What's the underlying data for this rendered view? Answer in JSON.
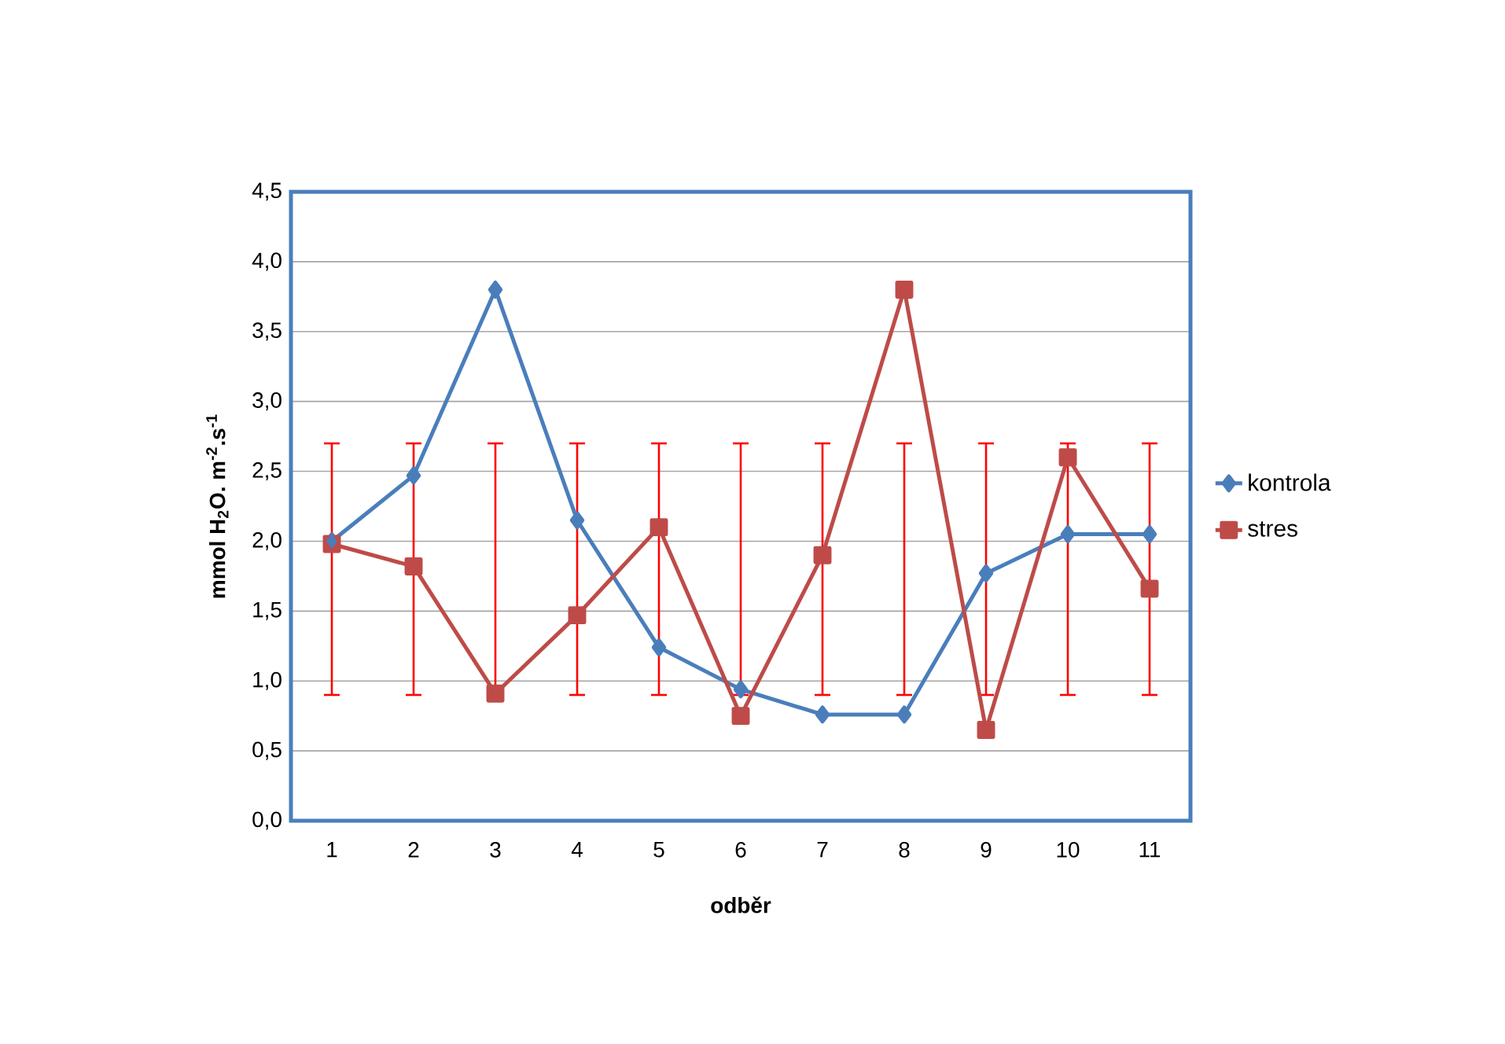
{
  "chart_data": {
    "type": "line",
    "xlabel": "odběr",
    "ylabel": "mmol H$_{2}$O. m$^{-2}$.s$^{-1}$",
    "categories": [
      "1",
      "2",
      "3",
      "4",
      "5",
      "6",
      "7",
      "8",
      "9",
      "10",
      "11"
    ],
    "series": [
      {
        "name": "kontrola",
        "color": "#4a7ebb",
        "marker": "diamond",
        "values": [
          2.0,
          2.47,
          3.8,
          2.15,
          1.24,
          0.94,
          0.76,
          0.76,
          1.77,
          2.05,
          2.05
        ]
      },
      {
        "name": "stres",
        "color": "#be4b48",
        "marker": "square",
        "values": [
          1.98,
          1.82,
          0.91,
          1.47,
          2.1,
          0.75,
          1.9,
          3.8,
          0.65,
          2.6,
          1.66
        ],
        "errors": [
          [
            0.9,
            2.7
          ],
          [
            0.9,
            2.7
          ],
          [
            0.9,
            2.7
          ],
          [
            0.9,
            2.7
          ],
          [
            0.9,
            2.7
          ],
          [
            0.9,
            2.7
          ],
          [
            0.9,
            2.7
          ],
          [
            0.9,
            2.7
          ],
          [
            0.9,
            2.7
          ],
          [
            0.9,
            2.7
          ],
          [
            0.9,
            2.7
          ]
        ]
      }
    ],
    "ylim": [
      0,
      4.5
    ],
    "yticks": [
      {
        "value": 0,
        "label": "0,0"
      },
      {
        "value": 0.5,
        "label": "0,5"
      },
      {
        "value": 1,
        "label": "1,0"
      },
      {
        "value": 1.5,
        "label": "1,5"
      },
      {
        "value": 2,
        "label": "2,0"
      },
      {
        "value": 2.5,
        "label": "2,5"
      },
      {
        "value": 3,
        "label": "3,0"
      },
      {
        "value": 3.5,
        "label": "3,5"
      },
      {
        "value": 4,
        "label": "4,0"
      },
      {
        "value": 4.5,
        "label": "4,5"
      }
    ],
    "grid": "y",
    "legend": "right",
    "line_style": "solid"
  }
}
